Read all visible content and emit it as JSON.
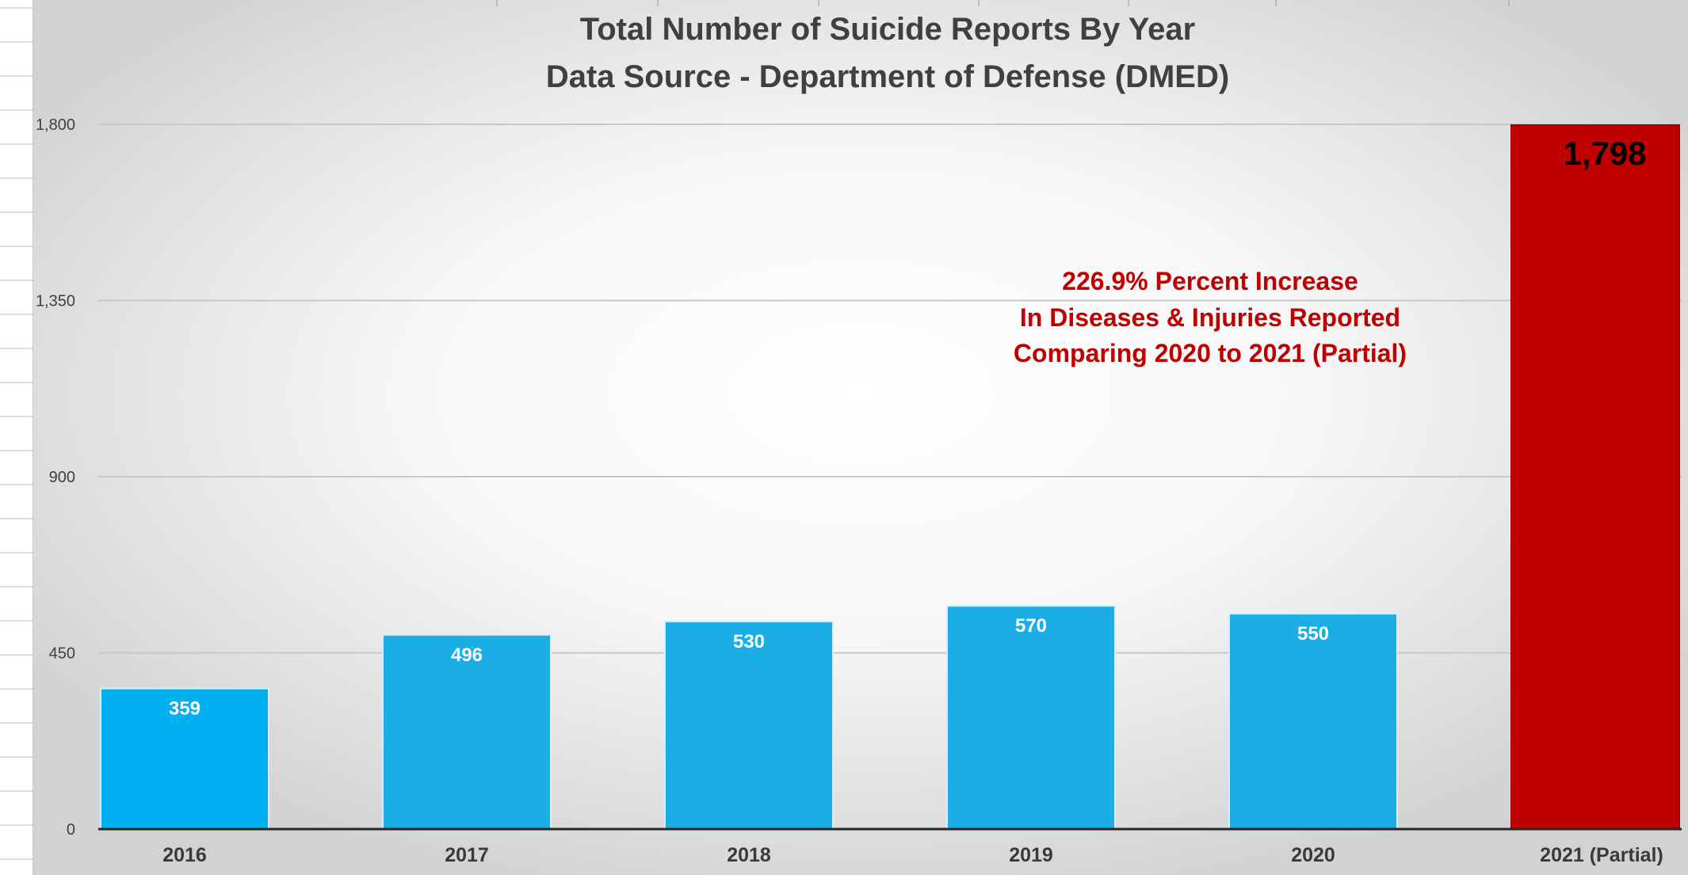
{
  "colors": {
    "bar": "#1baee4",
    "bar_first": "#00b0f0",
    "bar_highlight": "#c00000",
    "annotation": "#c00000",
    "gridline": "#c8c8c8"
  },
  "chart_data": {
    "type": "bar",
    "title": "Total Number of Suicide Reports By Year",
    "subtitle": "Data Source - Department of Defense (DMED)",
    "categories": [
      "2016",
      "2017",
      "2018",
      "2019",
      "2020",
      "2021 (Partial)"
    ],
    "values": [
      359,
      496,
      530,
      570,
      550,
      1798
    ],
    "data_labels": [
      "359",
      "496",
      "530",
      "570",
      "550",
      "1,798"
    ],
    "highlight_index": 5,
    "xlabel": "",
    "ylabel": "",
    "ylim": [
      0,
      1800
    ],
    "yticks": [
      0,
      450,
      900,
      1350,
      1800
    ],
    "ytick_labels": [
      "0",
      "450",
      "900",
      "1,350",
      "1,800"
    ],
    "grid": true,
    "legend": "none",
    "annotation": [
      "226.9% Percent Increase",
      "In Diseases & Injuries Reported",
      "Comparing 2020 to 2021 (Partial)"
    ]
  }
}
